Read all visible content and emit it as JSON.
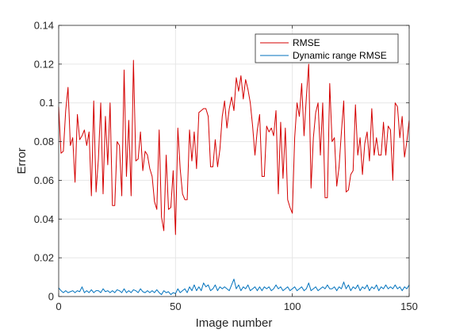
{
  "chart_data": {
    "type": "line",
    "title": "",
    "xlabel": "Image number",
    "ylabel": "Error",
    "xlim": [
      0,
      150
    ],
    "ylim": [
      0,
      0.14
    ],
    "xticks": [
      0,
      50,
      100,
      150
    ],
    "xtick_labels": [
      "0",
      "50",
      "100",
      "150"
    ],
    "yticks": [
      0,
      0.02,
      0.04,
      0.06,
      0.08,
      0.1,
      0.12,
      0.14
    ],
    "ytick_labels": [
      "0",
      "0.02",
      "0.04",
      "0.06",
      "0.08",
      "0.1",
      "0.12",
      "0.14"
    ],
    "grid": true,
    "legend_position": "top-right",
    "x": [
      0,
      1,
      2,
      3,
      4,
      5,
      6,
      7,
      8,
      9,
      10,
      11,
      12,
      13,
      14,
      15,
      16,
      17,
      18,
      19,
      20,
      21,
      22,
      23,
      24,
      25,
      26,
      27,
      28,
      29,
      30,
      31,
      32,
      33,
      34,
      35,
      36,
      37,
      38,
      39,
      40,
      41,
      42,
      43,
      44,
      45,
      46,
      47,
      48,
      49,
      50,
      51,
      52,
      53,
      54,
      55,
      56,
      57,
      58,
      59,
      60,
      61,
      62,
      63,
      64,
      65,
      66,
      67,
      68,
      69,
      70,
      71,
      72,
      73,
      74,
      75,
      76,
      77,
      78,
      79,
      80,
      81,
      82,
      83,
      84,
      85,
      86,
      87,
      88,
      89,
      90,
      91,
      92,
      93,
      94,
      95,
      96,
      97,
      98,
      99,
      100,
      101,
      102,
      103,
      104,
      105,
      106,
      107,
      108,
      109,
      110,
      111,
      112,
      113,
      114,
      115,
      116,
      117,
      118,
      119,
      120,
      121,
      122,
      123,
      124,
      125,
      126,
      127,
      128,
      129,
      130,
      131,
      132,
      133,
      134,
      135,
      136,
      137,
      138,
      139,
      140,
      141,
      142,
      143,
      144,
      145,
      146,
      147,
      148,
      149,
      150
    ],
    "series": [
      {
        "name": "RMSE",
        "color": "#d40000",
        "values": [
          0.098,
          0.074,
          0.075,
          0.096,
          0.108,
          0.078,
          0.082,
          0.059,
          0.094,
          0.081,
          0.083,
          0.086,
          0.078,
          0.085,
          0.052,
          0.101,
          0.054,
          0.071,
          0.1,
          0.053,
          0.093,
          0.068,
          0.1,
          0.047,
          0.047,
          0.08,
          0.078,
          0.052,
          0.117,
          0.062,
          0.091,
          0.052,
          0.122,
          0.07,
          0.071,
          0.085,
          0.065,
          0.075,
          0.073,
          0.066,
          0.062,
          0.049,
          0.045,
          0.086,
          0.041,
          0.034,
          0.073,
          0.045,
          0.046,
          0.065,
          0.032,
          0.087,
          0.066,
          0.053,
          0.05,
          0.05,
          0.086,
          0.07,
          0.085,
          0.066,
          0.095,
          0.096,
          0.097,
          0.097,
          0.093,
          0.067,
          0.067,
          0.081,
          0.067,
          0.076,
          0.093,
          0.101,
          0.087,
          0.097,
          0.103,
          0.096,
          0.113,
          0.106,
          0.114,
          0.102,
          0.112,
          0.107,
          0.1,
          0.088,
          0.073,
          0.086,
          0.094,
          0.062,
          0.062,
          0.088,
          0.085,
          0.087,
          0.083,
          0.096,
          0.053,
          0.09,
          0.061,
          0.087,
          0.05,
          0.046,
          0.043,
          0.082,
          0.1,
          0.093,
          0.11,
          0.083,
          0.103,
          0.12,
          0.056,
          0.082,
          0.095,
          0.1,
          0.073,
          0.1,
          0.051,
          0.051,
          0.11,
          0.08,
          0.082,
          0.057,
          0.067,
          0.085,
          0.101,
          0.054,
          0.055,
          0.063,
          0.065,
          0.099,
          0.073,
          0.082,
          0.063,
          0.079,
          0.085,
          0.07,
          0.097,
          0.073,
          0.082,
          0.073,
          0.073,
          0.09,
          0.073,
          0.088,
          0.086,
          0.06,
          0.1,
          0.098,
          0.082,
          0.093,
          0.072,
          0.08,
          0.091
        ]
      },
      {
        "name": "Dynamic range RMSE",
        "color": "#0072bd",
        "values": [
          0.0045,
          0.003,
          0.002,
          0.003,
          0.002,
          0.0025,
          0.003,
          0.002,
          0.003,
          0.0025,
          0.005,
          0.002,
          0.003,
          0.002,
          0.0035,
          0.002,
          0.003,
          0.003,
          0.002,
          0.004,
          0.0025,
          0.003,
          0.002,
          0.003,
          0.002,
          0.0035,
          0.003,
          0.002,
          0.004,
          0.002,
          0.003,
          0.002,
          0.0035,
          0.003,
          0.002,
          0.004,
          0.0025,
          0.002,
          0.003,
          0.002,
          0.003,
          0.002,
          0.0035,
          0.002,
          0.001,
          0.003,
          0.002,
          0.0025,
          0.001,
          0.002,
          0.0015,
          0.004,
          0.002,
          0.003,
          0.004,
          0.002,
          0.005,
          0.003,
          0.006,
          0.003,
          0.005,
          0.003,
          0.007,
          0.005,
          0.006,
          0.003,
          0.004,
          0.006,
          0.003,
          0.005,
          0.004,
          0.005,
          0.004,
          0.003,
          0.006,
          0.009,
          0.004,
          0.006,
          0.003,
          0.005,
          0.004,
          0.006,
          0.003,
          0.004,
          0.005,
          0.003,
          0.005,
          0.003,
          0.005,
          0.004,
          0.005,
          0.003,
          0.004,
          0.006,
          0.004,
          0.005,
          0.003,
          0.004,
          0.005,
          0.003,
          0.004,
          0.005,
          0.003,
          0.004,
          0.005,
          0.003,
          0.004,
          0.007,
          0.003,
          0.004,
          0.005,
          0.003,
          0.004,
          0.005,
          0.004,
          0.006,
          0.004,
          0.004,
          0.005,
          0.003,
          0.005,
          0.004,
          0.0075,
          0.004,
          0.006,
          0.003,
          0.005,
          0.004,
          0.006,
          0.003,
          0.005,
          0.004,
          0.006,
          0.003,
          0.005,
          0.004,
          0.006,
          0.003,
          0.005,
          0.004,
          0.006,
          0.004,
          0.005,
          0.004,
          0.006,
          0.004,
          0.005,
          0.003,
          0.005,
          0.004,
          0.006
        ]
      }
    ]
  }
}
